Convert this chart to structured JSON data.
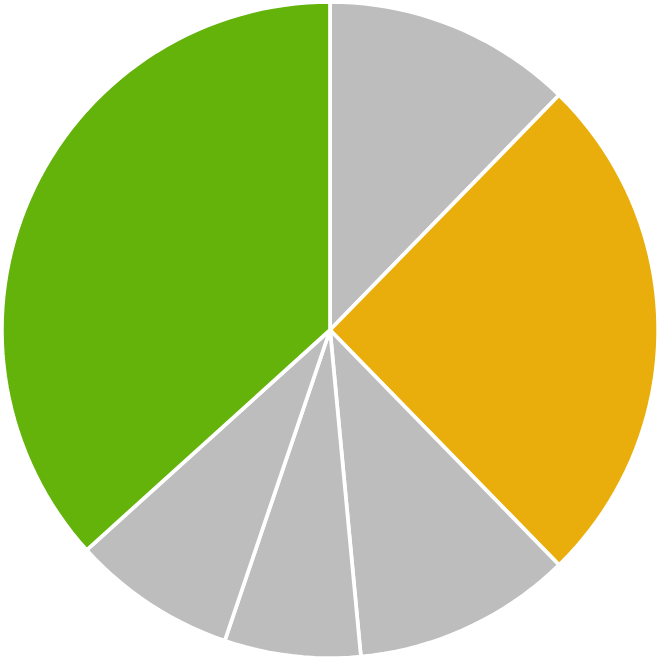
{
  "chart_data": {
    "type": "pie",
    "categories": [
      null,
      null,
      null,
      null,
      null,
      null
    ],
    "values": [
      12.3,
      25.4,
      10.8,
      6.7,
      8.1,
      36.7
    ],
    "colors": [
      "#bdbdbd",
      "#e9ae0b",
      "#bdbdbd",
      "#bdbdbd",
      "#bdbdbd",
      "#63b30a"
    ]
  }
}
